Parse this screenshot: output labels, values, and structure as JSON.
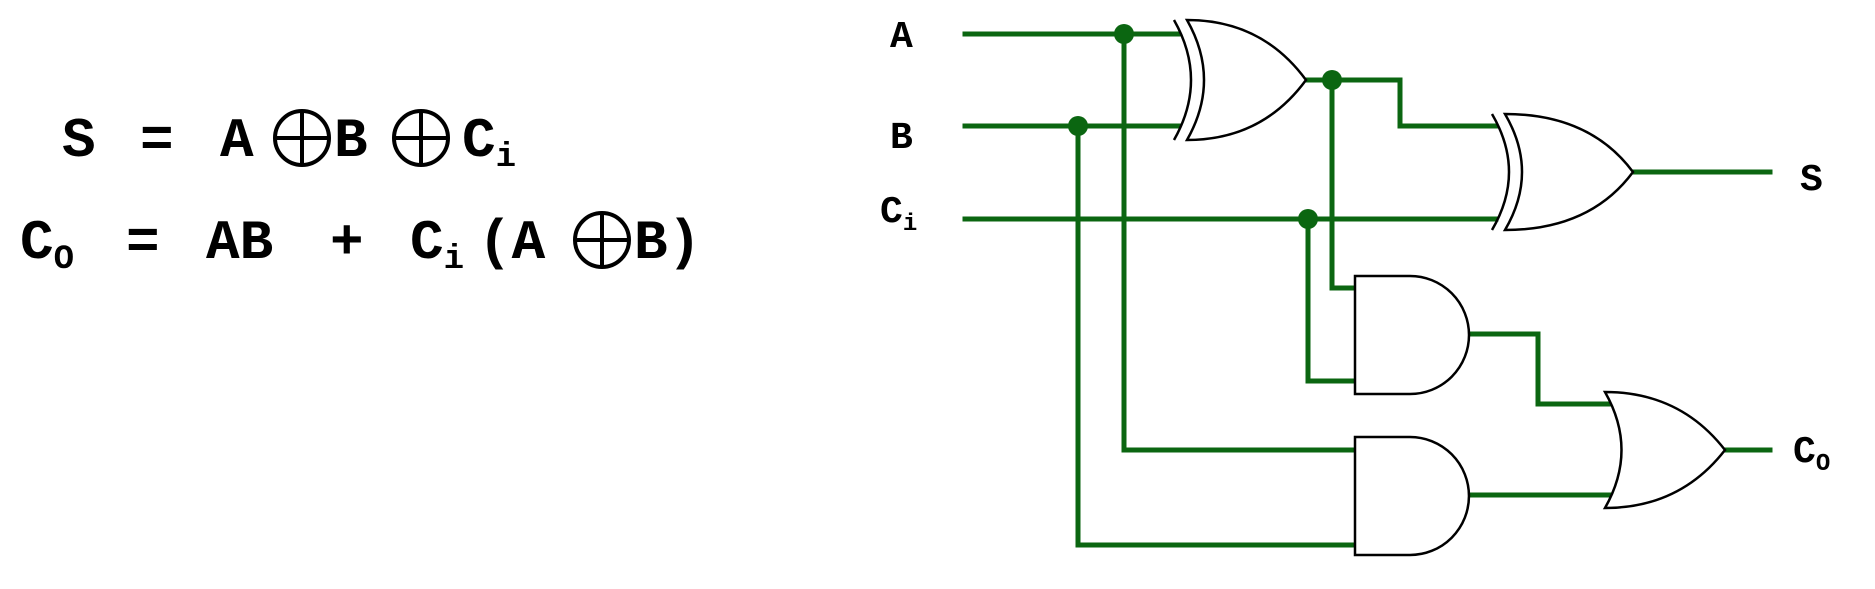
{
  "equations": {
    "sum": {
      "lhs": "S",
      "eq": "=",
      "t1": "A",
      "t2": "B",
      "t3_base": "C",
      "t3_sub": "i"
    },
    "carry": {
      "lhs_base": "C",
      "lhs_sub": "O",
      "eq": "=",
      "t1": "AB",
      "plus": "+",
      "t2_base": "C",
      "t2_sub": "i",
      "open": "(A",
      "close": "B)"
    }
  },
  "inputs": {
    "a": "A",
    "b": "B",
    "ci_base": "C",
    "ci_sub": "i"
  },
  "outputs": {
    "s": "S",
    "co_base": "C",
    "co_sub": "O"
  },
  "colors": {
    "wire": "#0b6611",
    "gate_stroke": "#000000",
    "background": "#ffffff"
  }
}
